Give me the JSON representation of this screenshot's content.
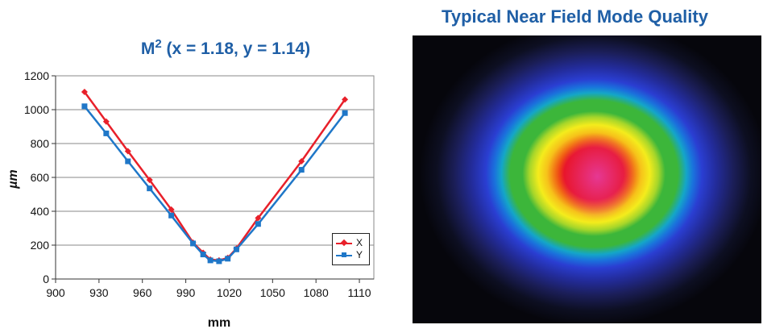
{
  "chart_data": {
    "type": "line",
    "title_main": "M",
    "title_sup": "2",
    "title_rest": " (x = 1.18, y = 1.14)",
    "xlabel": "mm",
    "ylabel": "µm",
    "xlim": [
      900,
      1120
    ],
    "ylim": [
      0,
      1200
    ],
    "xticks": [
      900,
      930,
      960,
      990,
      1020,
      1050,
      1080,
      1110
    ],
    "yticks": [
      0,
      200,
      400,
      600,
      800,
      1000,
      1200
    ],
    "grid": "horizontal",
    "legend_position": "bottom-right",
    "series": [
      {
        "name": "X",
        "color": "#e8202a",
        "marker": "diamond",
        "x": [
          920,
          935,
          950,
          965,
          980,
          995,
          1002,
          1007,
          1013,
          1019,
          1025,
          1040,
          1070,
          1100
        ],
        "y": [
          1105,
          930,
          755,
          585,
          410,
          215,
          155,
          115,
          110,
          125,
          180,
          360,
          695,
          1060
        ]
      },
      {
        "name": "Y",
        "color": "#1f77c8",
        "marker": "square",
        "x": [
          920,
          935,
          950,
          965,
          980,
          995,
          1002,
          1007,
          1013,
          1019,
          1025,
          1040,
          1070,
          1100
        ],
        "y": [
          1020,
          860,
          695,
          535,
          375,
          210,
          145,
          110,
          105,
          120,
          175,
          325,
          645,
          980
        ]
      }
    ]
  },
  "beam_image": {
    "title": "Typical Near Field Mode Quality"
  }
}
